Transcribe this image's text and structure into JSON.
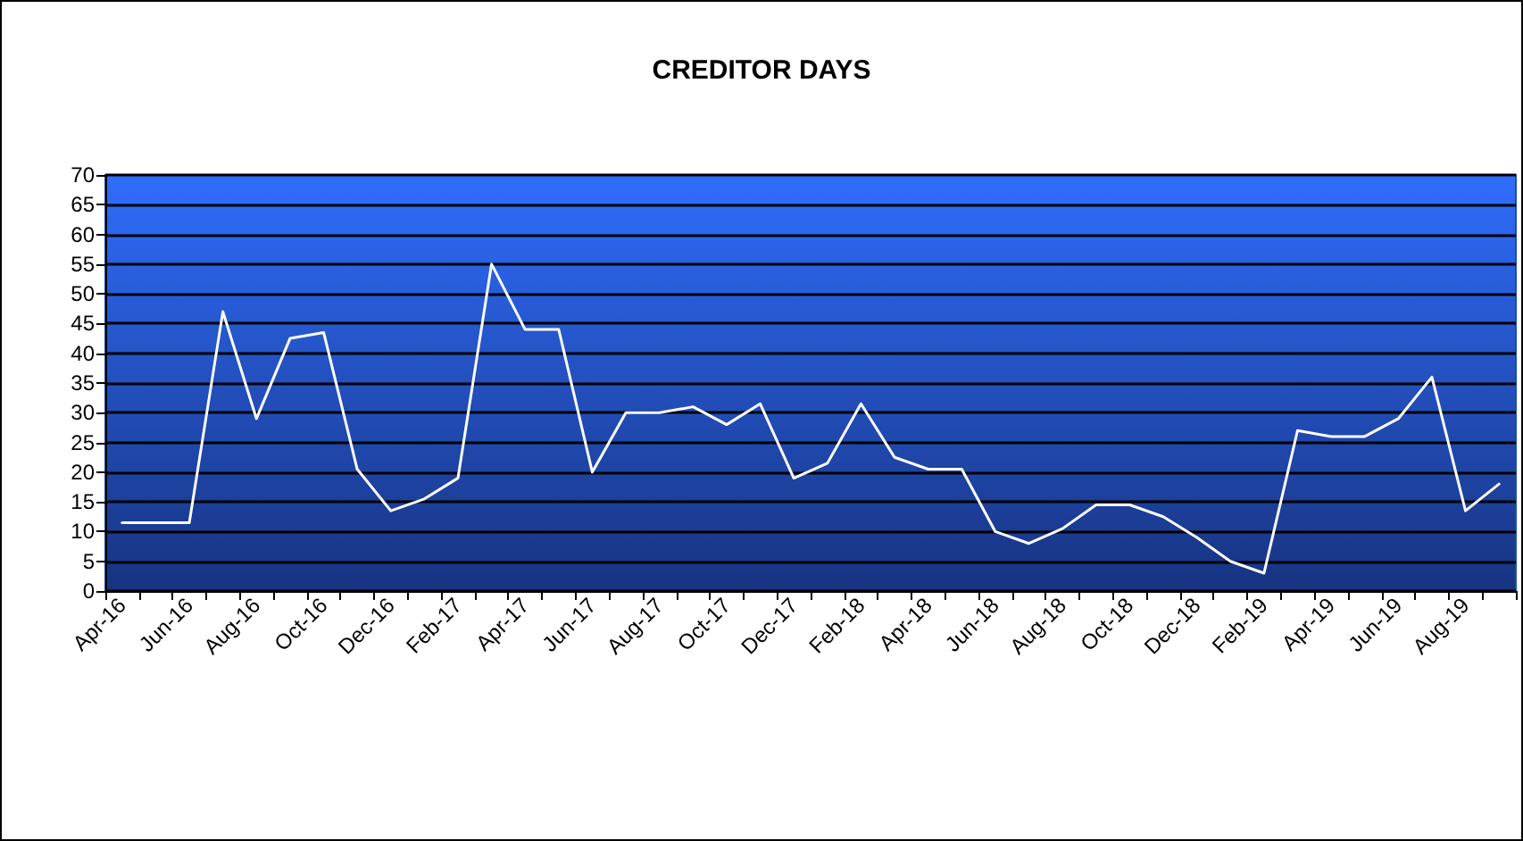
{
  "chart_data": {
    "type": "line",
    "title": "CREDITOR DAYS",
    "categories": [
      "Apr-16",
      null,
      "Jun-16",
      null,
      "Aug-16",
      null,
      "Oct-16",
      null,
      "Dec-16",
      null,
      "Feb-17",
      null,
      "Apr-17",
      null,
      "Jun-17",
      null,
      "Aug-17",
      null,
      "Oct-17",
      null,
      "Dec-17",
      null,
      "Feb-18",
      null,
      "Apr-18",
      null,
      "Jun-18",
      null,
      "Aug-18",
      null,
      "Oct-18",
      null,
      "Dec-18",
      null,
      "Feb-19",
      null,
      "Apr-19",
      null,
      "Jun-19",
      null,
      "Aug-19",
      null
    ],
    "series": [
      {
        "color": "#ffffff",
        "values": [
          11.5,
          11.5,
          11.5,
          47,
          29,
          42.5,
          43.5,
          20.5,
          13.5,
          15.5,
          19,
          55,
          44,
          44,
          20,
          30,
          30,
          31,
          28,
          31.5,
          19,
          21.5,
          31.5,
          22.5,
          20.5,
          20.5,
          10,
          8,
          10.5,
          14.5,
          14.5,
          12.5,
          9,
          5,
          3,
          27,
          26,
          26,
          29,
          36,
          13.5,
          18
        ]
      }
    ],
    "ylim": [
      0,
      70
    ],
    "yticks": [
      0,
      5,
      10,
      15,
      20,
      25,
      30,
      35,
      40,
      45,
      50,
      55,
      60,
      65,
      70
    ],
    "grid": "y",
    "marker": "none",
    "line_style": "solid"
  }
}
